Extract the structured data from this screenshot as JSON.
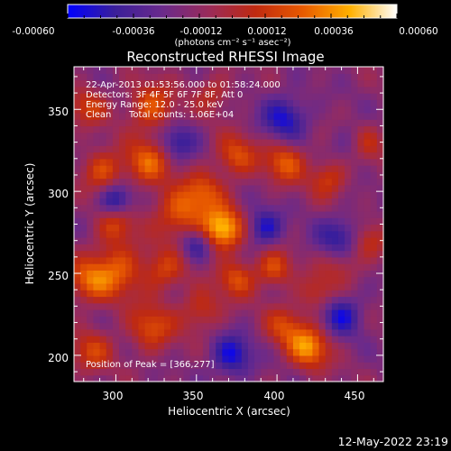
{
  "chart_data": {
    "type": "heatmap",
    "title": "Reconstructed RHESSI Image",
    "xlabel": "Heliocentric X (arcsec)",
    "ylabel": "Heliocentric Y (arcsec)",
    "xlim": [
      274,
      466
    ],
    "ylim": [
      184,
      376
    ],
    "x_ticks": [
      "300",
      "350",
      "400",
      "450"
    ],
    "y_ticks": [
      "200",
      "250",
      "300",
      "350"
    ],
    "colorbar": {
      "range": [
        -0.0006,
        0.0006
      ],
      "tick_labels": [
        "-0.00060",
        "-0.00036",
        "-0.00012",
        "0.00012",
        "0.00036",
        "0.00060"
      ],
      "unit_label": "(photons cm⁻² s⁻¹ asec⁻²)",
      "stops": [
        "#0000ff",
        "#3a1f9a",
        "#6a2a8c",
        "#9a2b5a",
        "#c02a10",
        "#e85a00",
        "#ffb000",
        "#ffffff"
      ]
    },
    "annotations": [
      "22-Apr-2013 01:53:56.000 to 01:58:24.000",
      "Detectors: 3F 4F 5F 6F 7F 8F, Att 0",
      "Energy Range: 12.0 - 25.0 keV",
      "Clean",
      "Total counts: 1.06E+04"
    ],
    "peak_label": "Position of Peak = [366,277]",
    "peak": {
      "x": 366,
      "y": 277
    },
    "hot_spots": [
      {
        "x": 366,
        "y": 277,
        "amp": 0.00065,
        "sigma": 9
      },
      {
        "x": 340,
        "y": 287,
        "amp": 0.0004,
        "sigma": 11
      },
      {
        "x": 355,
        "y": 300,
        "amp": 0.0003,
        "sigma": 9
      },
      {
        "x": 320,
        "y": 318,
        "amp": 0.0004,
        "sigma": 10
      },
      {
        "x": 292,
        "y": 313,
        "amp": 0.00035,
        "sigma": 9
      },
      {
        "x": 283,
        "y": 352,
        "amp": 0.0003,
        "sigma": 8
      },
      {
        "x": 322,
        "y": 352,
        "amp": 0.00038,
        "sigma": 10
      },
      {
        "x": 300,
        "y": 252,
        "amp": 0.0004,
        "sigma": 12
      },
      {
        "x": 282,
        "y": 245,
        "amp": 0.00032,
        "sigma": 9
      },
      {
        "x": 285,
        "y": 203,
        "amp": 0.0003,
        "sigma": 9
      },
      {
        "x": 322,
        "y": 217,
        "amp": 0.00035,
        "sigma": 10
      },
      {
        "x": 330,
        "y": 252,
        "amp": 0.0003,
        "sigma": 9
      },
      {
        "x": 353,
        "y": 228,
        "amp": 0.00028,
        "sigma": 9
      },
      {
        "x": 375,
        "y": 247,
        "amp": 0.00035,
        "sigma": 8
      },
      {
        "x": 398,
        "y": 253,
        "amp": 0.00035,
        "sigma": 8
      },
      {
        "x": 420,
        "y": 205,
        "amp": 0.0005,
        "sigma": 9
      },
      {
        "x": 405,
        "y": 218,
        "amp": 0.0003,
        "sigma": 9
      },
      {
        "x": 375,
        "y": 322,
        "amp": 0.00035,
        "sigma": 9
      },
      {
        "x": 405,
        "y": 318,
        "amp": 0.00038,
        "sigma": 9
      },
      {
        "x": 432,
        "y": 308,
        "amp": 0.0003,
        "sigma": 8
      },
      {
        "x": 455,
        "y": 330,
        "amp": 0.0003,
        "sigma": 8
      },
      {
        "x": 440,
        "y": 258,
        "amp": 0.0003,
        "sigma": 9
      },
      {
        "x": 456,
        "y": 270,
        "amp": 0.00028,
        "sigma": 8
      },
      {
        "x": 425,
        "y": 238,
        "amp": 0.00025,
        "sigma": 8
      },
      {
        "x": 360,
        "y": 360,
        "amp": 0.00022,
        "sigma": 8
      },
      {
        "x": 300,
        "y": 280,
        "amp": 0.0003,
        "sigma": 8
      }
    ],
    "cold_spots": [
      {
        "x": 440,
        "y": 270,
        "amp": -0.0004,
        "sigma": 10
      },
      {
        "x": 350,
        "y": 268,
        "amp": -0.00035,
        "sigma": 7
      },
      {
        "x": 392,
        "y": 278,
        "amp": -0.00035,
        "sigma": 8
      },
      {
        "x": 372,
        "y": 200,
        "amp": -0.00038,
        "sigma": 9
      },
      {
        "x": 440,
        "y": 225,
        "amp": -0.00035,
        "sigma": 9
      },
      {
        "x": 300,
        "y": 295,
        "amp": -0.0004,
        "sigma": 7
      },
      {
        "x": 405,
        "y": 345,
        "amp": -0.00035,
        "sigma": 10
      },
      {
        "x": 448,
        "y": 330,
        "amp": -0.0002,
        "sigma": 8
      },
      {
        "x": 338,
        "y": 330,
        "amp": -0.0003,
        "sigma": 8
      }
    ]
  },
  "footer": {
    "timestamp": "12-May-2022 23:19"
  }
}
